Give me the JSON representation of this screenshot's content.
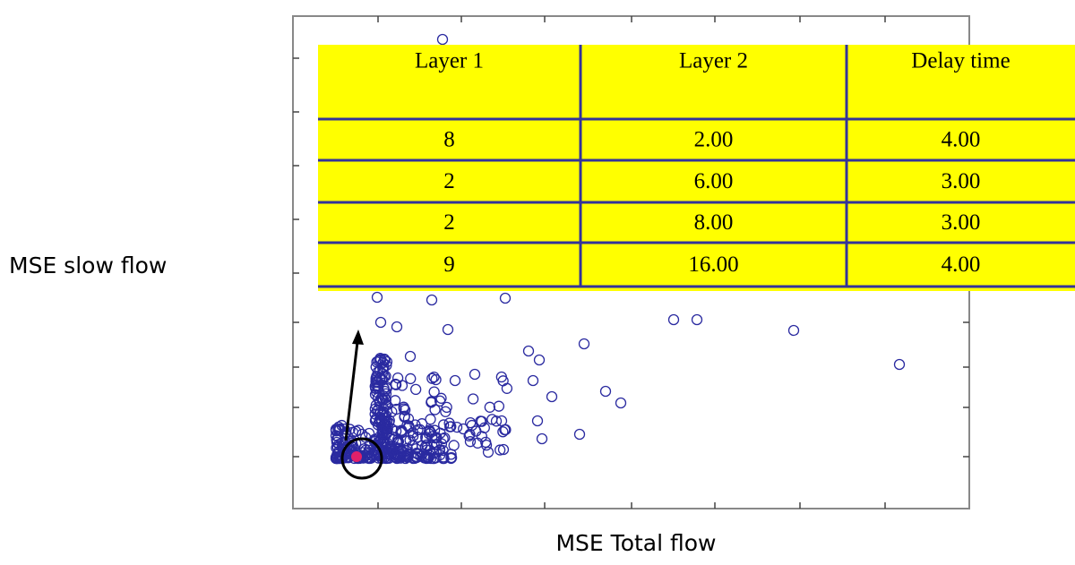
{
  "y_label": "MSE slow flow",
  "x_label": "MSE Total flow",
  "table": {
    "header": [
      "Layer 1",
      "Layer 2",
      "Delay time"
    ],
    "rows": [
      [
        "8",
        "2.00",
        "4.00"
      ],
      [
        "2",
        "6.00",
        "3.00"
      ],
      [
        "2",
        "8.00",
        "3.00"
      ],
      [
        "9",
        "16.00",
        "4.00"
      ]
    ]
  }
}
